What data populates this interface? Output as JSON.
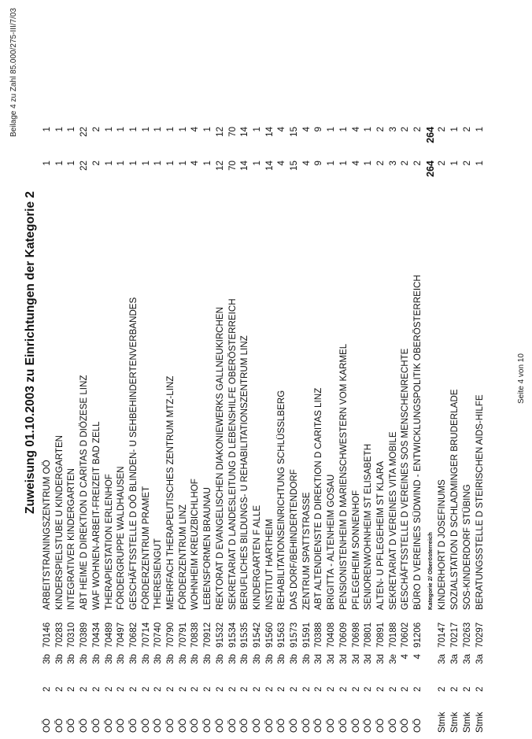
{
  "header": {
    "beilage": "Beilage  4 zu Zahl 85.000/275-III/7/03",
    "title": "Zuweisung 01.10.2003 zu Einrichtungen der Kategorie 2"
  },
  "footer": {
    "page": "Seite 4 von 10"
  },
  "rows": [
    {
      "land": "OÖ",
      "kat": "2",
      "stufe": "3b",
      "code": "70146",
      "name": "ARBEITSTRAININGSZENTRUM OÖ",
      "a": "1",
      "b": "1"
    },
    {
      "land": "OÖ",
      "kat": "2",
      "stufe": "3b",
      "code": "70283",
      "name": "KINDERSPIELSTUBE U KINDERGARTEN",
      "a": "1",
      "b": "1"
    },
    {
      "land": "OÖ",
      "kat": "2",
      "stufe": "3b",
      "code": "70310",
      "name": "INTEGRATIVER KINDERGARTEN",
      "a": "1",
      "b": "1"
    },
    {
      "land": "OÖ",
      "kat": "2",
      "stufe": "3b",
      "code": "70389",
      "name": "ABT HEIME D DIREKTION D CARITAS D DIÖZESE LINZ",
      "a": "22",
      "b": "22"
    },
    {
      "land": "OÖ",
      "kat": "2",
      "stufe": "3b",
      "code": "70434",
      "name": "WAF WOHNEN-ARBEIT-FREIZEIT BAD ZELL",
      "a": "2",
      "b": "2"
    },
    {
      "land": "OÖ",
      "kat": "2",
      "stufe": "3b",
      "code": "70489",
      "name": "THERAPIESTATION ERLENHOF",
      "a": "1",
      "b": "1"
    },
    {
      "land": "OÖ",
      "kat": "2",
      "stufe": "3b",
      "code": "70497",
      "name": "FÖRDERGRUPPE WALDHAUSEN",
      "a": "1",
      "b": "1"
    },
    {
      "land": "OÖ",
      "kat": "2",
      "stufe": "3b",
      "code": "70682",
      "name": "GESCHÄFTSSTELLE D OÖ BLINDEN- U SEHBEHINDERTENVERBANDES",
      "a": "1",
      "b": "1"
    },
    {
      "land": "OÖ",
      "kat": "2",
      "stufe": "3b",
      "code": "70714",
      "name": "FÖRDERZENTRUM PRAMET",
      "a": "1",
      "b": "1"
    },
    {
      "land": "OÖ",
      "kat": "2",
      "stufe": "3b",
      "code": "70740",
      "name": "THERESIENGUT",
      "a": "1",
      "b": "1"
    },
    {
      "land": "OÖ",
      "kat": "2",
      "stufe": "3b",
      "code": "70790",
      "name": "MEHRFACH THERAPEUTISCHES ZENTRUM MTZ-LINZ",
      "a": "1",
      "b": "1"
    },
    {
      "land": "OÖ",
      "kat": "2",
      "stufe": "3b",
      "code": "70791",
      "name": "FÖRDERZENTRUM LINZ",
      "a": "1",
      "b": "1"
    },
    {
      "land": "OÖ",
      "kat": "2",
      "stufe": "3b",
      "code": "70838",
      "name": "WOHNHEIM KREUZBICHLHOF",
      "a": "4",
      "b": "4"
    },
    {
      "land": "OÖ",
      "kat": "2",
      "stufe": "3b",
      "code": "70912",
      "name": "LEBENSFORMEN BRAUNAU",
      "a": "1",
      "b": "1"
    },
    {
      "land": "OÖ",
      "kat": "2",
      "stufe": "3b",
      "code": "91532",
      "name": "REKTORAT D EVANGELISCHEN DIAKONIEWERKS GALLNEUKIRCHEN",
      "a": "12",
      "b": "12"
    },
    {
      "land": "OÖ",
      "kat": "2",
      "stufe": "3b",
      "code": "91534",
      "name": "SEKRETARIAT D LANDESLEITUNG D LEBENSHILFE OBERÖSTERREICH",
      "a": "70",
      "b": "70"
    },
    {
      "land": "OÖ",
      "kat": "2",
      "stufe": "3b",
      "code": "91535",
      "name": "BERUFLICHES BILDUNGS- U REHABILITATIONSZENTRUM LINZ",
      "a": "14",
      "b": "14"
    },
    {
      "land": "OÖ",
      "kat": "2",
      "stufe": "3b",
      "code": "91542",
      "name": "KINDERGARTEN F ALLE",
      "a": "1",
      "b": "1"
    },
    {
      "land": "OÖ",
      "kat": "2",
      "stufe": "3b",
      "code": "91560",
      "name": "INSTITUT HARTHEIM",
      "a": "14",
      "b": "14"
    },
    {
      "land": "OÖ",
      "kat": "2",
      "stufe": "3b",
      "code": "91563",
      "name": "REHABILITATIONSEINRICHTUNG SCHLÜSSLBERG",
      "a": "4",
      "b": "4"
    },
    {
      "land": "OÖ",
      "kat": "2",
      "stufe": "3b",
      "code": "91573",
      "name": "DAS DORF/BEHINDERTENDORF",
      "a": "15",
      "b": "15"
    },
    {
      "land": "OÖ",
      "kat": "2",
      "stufe": "3b",
      "code": "91591",
      "name": "ZENTRUM SPATTSTRASSE",
      "a": "4",
      "b": "4"
    },
    {
      "land": "OÖ",
      "kat": "2",
      "stufe": "3d",
      "code": "70388",
      "name": "ABT ALTENDIENSTE D DIREKTION D CARITAS LINZ",
      "a": "9",
      "b": "9"
    },
    {
      "land": "OÖ",
      "kat": "2",
      "stufe": "3d",
      "code": "70408",
      "name": "BRIGITTA - ALTENHEIM GOSAU",
      "a": "1",
      "b": "1"
    },
    {
      "land": "OÖ",
      "kat": "2",
      "stufe": "3d",
      "code": "70609",
      "name": "PENSIONISTENHEIM D MARIENSCHWESTERN VOM KARMEL",
      "a": "1",
      "b": "1"
    },
    {
      "land": "OÖ",
      "kat": "2",
      "stufe": "3d",
      "code": "70698",
      "name": "PFLEGEHEIM SONNENHOF",
      "a": "4",
      "b": "4"
    },
    {
      "land": "OÖ",
      "kat": "2",
      "stufe": "3d",
      "code": "70801",
      "name": "SENIORENWOHNHEIM ST ELISABETH",
      "a": "1",
      "b": "1"
    },
    {
      "land": "OÖ",
      "kat": "2",
      "stufe": "3d",
      "code": "70891",
      "name": "ALTEN- U PFLEGEHEIM ST KLARA",
      "a": "2",
      "b": "2"
    },
    {
      "land": "OÖ",
      "kat": "2",
      "stufe": "3e",
      "code": "70188",
      "name": "SEKRETARIAT D VEREINES VITA MOBILE",
      "a": "3",
      "b": "3"
    },
    {
      "land": "OÖ",
      "kat": "2",
      "stufe": "4",
      "code": "70602",
      "name": "GESCHÄFTSSTELLE D VEREINES SOS MENSCHENRECHTE",
      "a": "2",
      "b": "2"
    },
    {
      "land": "OÖ",
      "kat": "2",
      "stufe": "4",
      "code": "91206",
      "name": "BÜRO D VEREINES SÜDWIND -  ENTWICKLUNGSPOLITIK OBERÖSTERREICH",
      "a": "2",
      "b": "2"
    },
    {
      "subtotal": true,
      "name": "Kategorie 2/ Oberösterreich",
      "a": "264",
      "b": "264"
    },
    {
      "land": "Stmk",
      "kat": "2",
      "stufe": "3a",
      "code": "70147",
      "name": "KINDERHORT D JOSEFINUMS",
      "a": "2",
      "b": "2"
    },
    {
      "land": "Stmk",
      "kat": "2",
      "stufe": "3a",
      "code": "70217",
      "name": "SOZIALSTATION D SCHLADMINGER BRUDERLADE",
      "a": "1",
      "b": "1"
    },
    {
      "land": "Stmk",
      "kat": "2",
      "stufe": "3a",
      "code": "70263",
      "name": "SOS-KINDERDORF STÜBING",
      "a": "2",
      "b": "2"
    },
    {
      "land": "Stmk",
      "kat": "2",
      "stufe": "3a",
      "code": "70297",
      "name": "BERATUNGSSTELLE D STEIRISCHEN AIDS-HILFE",
      "a": "1",
      "b": "1"
    }
  ]
}
